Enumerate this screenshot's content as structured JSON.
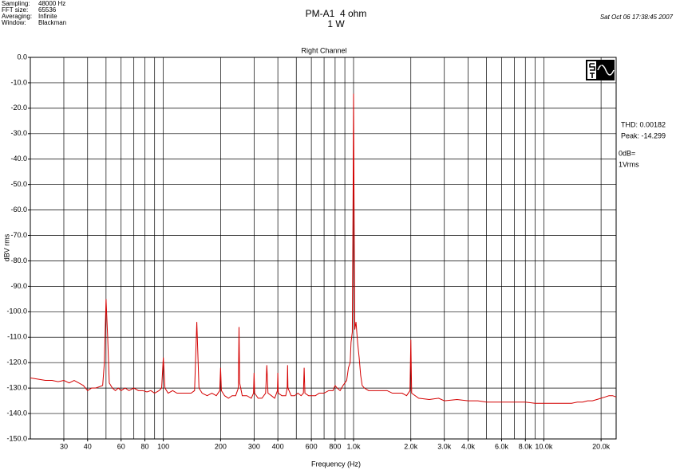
{
  "header": {
    "info_labels": [
      "Sampling:",
      "FFT size:",
      "Averaging:",
      "Window:"
    ],
    "info_values": [
      "48000 Hz",
      "65536",
      "Infinite",
      "Blackman"
    ],
    "timestamp": "Sat Oct 06 17:38:45 2007"
  },
  "chart_data": {
    "type": "line",
    "title": "PM-A1  4 ohm",
    "subtitle": "1 W",
    "plot_title": "Right Channel",
    "x_label": "Frequency (Hz)",
    "y_label": "dBV rms",
    "annotations": [
      "THD: 0.00182",
      "Peak: -14.299",
      "0dB=",
      "1Vrms"
    ],
    "x_scale": "log",
    "grid": true,
    "color": "#d40000",
    "xlim": [
      20,
      24000
    ],
    "ylim": [
      -150,
      0
    ],
    "xticks": [
      30,
      40,
      60,
      80,
      100,
      200,
      300,
      400,
      600,
      800,
      {
        "value": 1000,
        "label": "1.0k"
      },
      {
        "value": 2000,
        "label": "2.0k"
      },
      {
        "value": 3000,
        "label": "3.0k"
      },
      {
        "value": 4000,
        "label": "4.0k"
      },
      {
        "value": 6000,
        "label": "6.0k"
      },
      {
        "value": 8000,
        "label": "8.0k"
      },
      {
        "value": 10000,
        "label": "10.0k"
      },
      {
        "value": 20000,
        "label": "20.0k"
      }
    ],
    "x_minor_gridlines": [
      50,
      70,
      90,
      500,
      700,
      900,
      5000,
      7000,
      9000
    ],
    "yticks": [
      {
        "value": 0,
        "label": "0.0"
      },
      {
        "value": -10,
        "label": "-10.0"
      },
      {
        "value": -20,
        "label": "-20.0"
      },
      {
        "value": -30,
        "label": "-30.0"
      },
      {
        "value": -40,
        "label": "-40.0"
      },
      {
        "value": -50,
        "label": "-50.0"
      },
      {
        "value": -60,
        "label": "-60.0"
      },
      {
        "value": -70,
        "label": "-70.0"
      },
      {
        "value": -80,
        "label": "-80.0"
      },
      {
        "value": -90,
        "label": "-90.0"
      },
      {
        "value": -100,
        "label": "-100.0"
      },
      {
        "value": -110,
        "label": "-110.0"
      },
      {
        "value": -120,
        "label": "-120.0"
      },
      {
        "value": -130,
        "label": "-130.0"
      },
      {
        "value": -140,
        "label": "-140.0"
      },
      {
        "value": -150,
        "label": "-150.0"
      }
    ],
    "x": [
      20,
      22,
      24,
      26,
      28,
      30,
      32,
      34,
      36,
      38,
      40,
      42,
      44,
      46,
      48,
      49,
      50,
      51,
      52,
      54,
      56,
      58,
      60,
      63,
      66,
      70,
      74,
      78,
      82,
      86,
      90,
      95,
      98,
      100,
      102,
      106,
      112,
      118,
      125,
      132,
      140,
      146,
      150,
      154,
      160,
      170,
      180,
      190,
      198,
      200,
      202,
      210,
      220,
      230,
      240,
      248,
      250,
      252,
      260,
      275,
      290,
      298,
      300,
      302,
      315,
      330,
      345,
      350,
      355,
      370,
      385,
      398,
      400,
      402,
      420,
      440,
      448,
      450,
      452,
      470,
      490,
      510,
      530,
      545,
      550,
      555,
      580,
      600,
      630,
      660,
      700,
      740,
      780,
      800,
      820,
      850,
      880,
      920,
      940,
      960,
      970,
      985,
      995,
      1000,
      1005,
      1015,
      1030,
      1050,
      1070,
      1090,
      1110,
      1140,
      1200,
      1300,
      1400,
      1500,
      1600,
      1700,
      1800,
      1900,
      1980,
      2000,
      2020,
      2200,
      2500,
      2800,
      3000,
      3500,
      4000,
      4500,
      5000,
      6000,
      7000,
      8000,
      9000,
      10000,
      11000,
      12000,
      13000,
      14000,
      15000,
      16000,
      17000,
      18000,
      19000,
      20000,
      21000,
      22000,
      23000,
      24000
    ],
    "values": [
      -126,
      -126.5,
      -127,
      -127,
      -127.5,
      -127,
      -128,
      -127,
      -128,
      -129,
      -131,
      -130,
      -130,
      -129.5,
      -129,
      -120,
      -95,
      -110,
      -128,
      -130,
      -131,
      -130,
      -131,
      -130,
      -131,
      -130,
      -131,
      -131,
      -131.5,
      -131,
      -132,
      -131,
      -130,
      -118,
      -130,
      -132,
      -131,
      -132,
      -132,
      -132,
      -132,
      -131,
      -104,
      -130,
      -132,
      -133,
      -132,
      -133,
      -131,
      -122,
      -131,
      -133,
      -134,
      -133,
      -133,
      -130,
      -106,
      -128,
      -133,
      -133,
      -134,
      -132,
      -124,
      -132,
      -134,
      -134,
      -132,
      -121,
      -132,
      -133,
      -134,
      -131,
      -124,
      -132,
      -133,
      -133,
      -130,
      -121,
      -130,
      -133,
      -133,
      -132,
      -133,
      -132,
      -122,
      -132,
      -133,
      -133,
      -133,
      -132,
      -132,
      -131,
      -131,
      -129,
      -130,
      -131,
      -129,
      -127,
      -122,
      -120,
      -112,
      -108,
      -50,
      -14.299,
      -50,
      -107,
      -104,
      -112,
      -118,
      -125,
      -129,
      -130,
      -131,
      -131,
      -131,
      -131,
      -132,
      -132,
      -132,
      -133,
      -131,
      -111,
      -132,
      -134,
      -134.5,
      -134,
      -135,
      -134.5,
      -135,
      -135,
      -135.5,
      -135.5,
      -135.5,
      -135.5,
      -136,
      -136,
      -136,
      -136,
      -136,
      -136,
      -135.5,
      -135.5,
      -135,
      -135,
      -134.5,
      -134,
      -133.5,
      -133,
      -133,
      -133.5
    ]
  }
}
